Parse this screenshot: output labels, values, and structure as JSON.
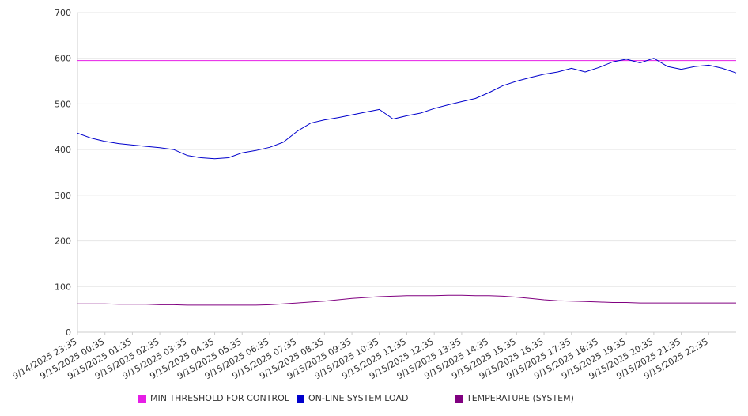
{
  "chart_data": {
    "type": "line",
    "title": "",
    "xlabel": "",
    "ylabel": "",
    "ylim": [
      0,
      700
    ],
    "yticks": [
      "0",
      "100",
      "200",
      "300",
      "400",
      "500",
      "600",
      "700"
    ],
    "grid": true,
    "legend_position": "bottom",
    "x_tick_labels": [
      "9/14/2025 23:35",
      "9/15/2025 00:35",
      "9/15/2025 01:35",
      "9/15/2025 02:35",
      "9/15/2025 03:35",
      "9/15/2025 04:35",
      "9/15/2025 05:35",
      "9/15/2025 06:35",
      "9/15/2025 07:35",
      "9/15/2025 08:35",
      "9/15/2025 09:35",
      "9/15/2025 10:35",
      "9/15/2025 11:35",
      "9/15/2025 12:35",
      "9/15/2025 13:35",
      "9/15/2025 14:35",
      "9/15/2025 15:35",
      "9/15/2025 16:35",
      "9/15/2025 17:35",
      "9/15/2025 18:35",
      "9/15/2025 19:35",
      "9/15/2025 20:35",
      "9/15/2025 21:35",
      "9/15/2025 22:35"
    ],
    "series": [
      {
        "name": "MIN THRESHOLD FOR CONTROL",
        "color": "#e61ee6",
        "values": [
          595,
          595,
          595,
          595,
          595,
          595,
          595,
          595,
          595,
          595,
          595,
          595,
          595,
          595,
          595,
          595,
          595,
          595,
          595,
          595,
          595,
          595,
          595,
          595,
          595,
          595,
          595,
          595,
          595,
          595,
          595,
          595,
          595,
          595,
          595,
          595,
          595,
          595,
          595,
          595,
          595,
          595,
          595,
          595,
          595,
          595,
          595,
          595,
          595
        ]
      },
      {
        "name": "ON-LINE SYSTEM LOAD",
        "color": "#0000cc",
        "values": [
          436,
          425,
          418,
          413,
          410,
          407,
          404,
          400,
          387,
          382,
          380,
          382,
          393,
          398,
          405,
          416,
          440,
          458,
          465,
          470,
          476,
          482,
          488,
          467,
          474,
          480,
          490,
          498,
          505,
          512,
          525,
          540,
          550,
          558,
          565,
          570,
          578,
          570,
          580,
          592,
          598,
          590,
          600,
          582,
          576,
          582,
          585,
          578,
          568
        ]
      },
      {
        "name": "TEMPERATURE (SYSTEM)",
        "color": "#800080",
        "values": [
          62,
          62,
          62,
          61,
          61,
          61,
          60,
          60,
          59,
          59,
          59,
          59,
          59,
          59,
          60,
          62,
          64,
          66,
          68,
          71,
          74,
          76,
          78,
          79,
          80,
          80,
          80,
          81,
          81,
          80,
          80,
          79,
          77,
          74,
          71,
          69,
          68,
          67,
          66,
          65,
          65,
          64,
          64,
          64,
          64,
          64,
          64,
          64,
          64
        ]
      }
    ]
  }
}
